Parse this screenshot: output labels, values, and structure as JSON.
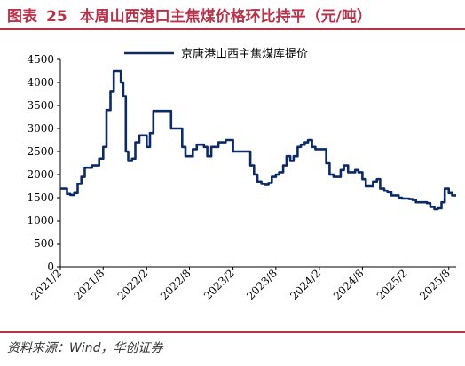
{
  "header": {
    "figure_label": "图表",
    "figure_number": "25",
    "title": "本周山西港口主焦煤价格环比持平（元/吨）"
  },
  "footer": {
    "source": "资料来源：Wind，华创证券"
  },
  "colors": {
    "accent": "#b8324a",
    "series": "#0c2a66"
  },
  "chart_data": {
    "type": "line",
    "title": "本周山西港口主焦煤价格环比持平（元/吨）",
    "xlabel": "",
    "ylabel": "",
    "ylim": [
      0,
      4500
    ],
    "yticks": [
      0,
      500,
      1000,
      1500,
      2000,
      2500,
      3000,
      3500,
      4000,
      4500
    ],
    "xlim": [
      "2021-02",
      "2025-09"
    ],
    "xticks": [
      "2021/2",
      "2021/8",
      "2022/2",
      "2022/8",
      "2023/2",
      "2023/8",
      "2024/2",
      "2024/8",
      "2025/2",
      "2025/8"
    ],
    "grid": false,
    "legend": "top-right",
    "series": [
      {
        "name": "京唐港山西主焦煤库提价",
        "x": [
          "2021-02-01",
          "2021-02-15",
          "2021-03-01",
          "2021-03-15",
          "2021-04-01",
          "2021-04-15",
          "2021-05-01",
          "2021-05-15",
          "2021-06-01",
          "2021-06-15",
          "2021-07-01",
          "2021-07-15",
          "2021-08-01",
          "2021-08-15",
          "2021-09-01",
          "2021-09-15",
          "2021-10-01",
          "2021-10-15",
          "2021-10-25",
          "2021-11-05",
          "2021-11-15",
          "2021-12-01",
          "2021-12-15",
          "2022-01-01",
          "2022-01-15",
          "2022-02-01",
          "2022-02-15",
          "2022-03-01",
          "2022-03-15",
          "2022-04-01",
          "2022-04-15",
          "2022-05-01",
          "2022-05-15",
          "2022-06-01",
          "2022-06-15",
          "2022-07-01",
          "2022-07-15",
          "2022-08-01",
          "2022-08-15",
          "2022-09-01",
          "2022-09-15",
          "2022-10-01",
          "2022-10-15",
          "2022-11-01",
          "2022-11-15",
          "2022-12-01",
          "2022-12-15",
          "2023-01-01",
          "2023-01-15",
          "2023-02-01",
          "2023-02-15",
          "2023-03-01",
          "2023-03-15",
          "2023-04-01",
          "2023-04-15",
          "2023-05-01",
          "2023-05-15",
          "2023-06-01",
          "2023-06-15",
          "2023-07-01",
          "2023-07-15",
          "2023-08-01",
          "2023-08-15",
          "2023-09-01",
          "2023-09-15",
          "2023-10-01",
          "2023-10-15",
          "2023-11-01",
          "2023-11-15",
          "2023-12-01",
          "2023-12-15",
          "2024-01-01",
          "2024-01-15",
          "2024-02-01",
          "2024-02-15",
          "2024-03-01",
          "2024-03-15",
          "2024-04-01",
          "2024-04-15",
          "2024-05-01",
          "2024-05-15",
          "2024-06-01",
          "2024-06-15",
          "2024-07-01",
          "2024-07-15",
          "2024-08-01",
          "2024-08-15",
          "2024-09-01",
          "2024-09-15",
          "2024-10-01",
          "2024-10-15",
          "2024-11-01",
          "2024-11-15",
          "2024-12-01",
          "2024-12-15",
          "2025-01-01",
          "2025-01-15",
          "2025-02-01",
          "2025-02-15",
          "2025-03-01",
          "2025-03-15",
          "2025-04-01",
          "2025-04-15",
          "2025-05-01",
          "2025-05-15",
          "2025-06-01",
          "2025-06-15",
          "2025-07-01",
          "2025-07-15",
          "2025-08-01",
          "2025-08-15",
          "2025-09-01"
        ],
        "values": [
          1700,
          1700,
          1580,
          1560,
          1600,
          1800,
          1950,
          2150,
          2150,
          2200,
          2200,
          2350,
          2600,
          3400,
          3800,
          4250,
          4250,
          4000,
          3700,
          2500,
          2300,
          2350,
          2700,
          2850,
          2850,
          2600,
          2900,
          3380,
          3380,
          3380,
          3380,
          3380,
          3000,
          3000,
          3000,
          2600,
          2400,
          2400,
          2550,
          2650,
          2650,
          2600,
          2400,
          2600,
          2600,
          2700,
          2700,
          2750,
          2750,
          2500,
          2500,
          2500,
          2500,
          2500,
          2200,
          2000,
          1850,
          1800,
          1780,
          1820,
          1950,
          2000,
          2050,
          2200,
          2400,
          2300,
          2400,
          2600,
          2650,
          2700,
          2750,
          2600,
          2550,
          2550,
          2550,
          2250,
          2000,
          1950,
          1950,
          2100,
          2200,
          2050,
          2050,
          2100,
          2050,
          1900,
          1750,
          1750,
          1850,
          1900,
          1700,
          1650,
          1620,
          1550,
          1550,
          1500,
          1480,
          1480,
          1470,
          1450,
          1400,
          1400,
          1400,
          1380,
          1300,
          1250,
          1270,
          1400,
          1700,
          1600,
          1550,
          1550
        ]
      }
    ]
  }
}
